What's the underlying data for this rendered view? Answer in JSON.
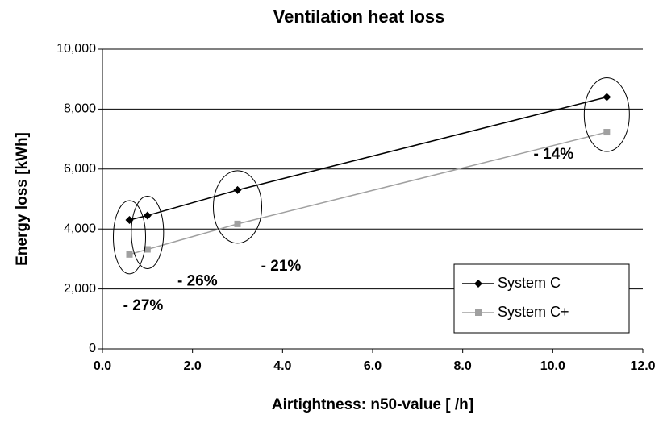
{
  "chart_data": {
    "type": "line",
    "title": "Ventilation heat loss",
    "x_label": "Airtightness: n50-value [ /h]",
    "y_label": "Energy loss [kWh]",
    "x": [
      0.6,
      1.0,
      3.0,
      11.2
    ],
    "series": [
      {
        "name": "System C",
        "color": "#000000",
        "marker": "diamond",
        "values": [
          4300,
          4450,
          5300,
          8400
        ]
      },
      {
        "name": "System C+",
        "color": "#a0a0a0",
        "marker": "square",
        "values": [
          3150,
          3320,
          4170,
          7230
        ]
      }
    ],
    "annotations": [
      "- 27%",
      "- 26%",
      "- 21%",
      "- 14%"
    ],
    "xlim": [
      0,
      12
    ],
    "ylim": [
      0,
      10000
    ],
    "xticks": [
      {
        "value": 0,
        "label": "0.0"
      },
      {
        "value": 2,
        "label": "2.0"
      },
      {
        "value": 4,
        "label": "4.0"
      },
      {
        "value": 6,
        "label": "6.0"
      },
      {
        "value": 8,
        "label": "8.0"
      },
      {
        "value": 10,
        "label": "10.0"
      },
      {
        "value": 12,
        "label": "12.0"
      }
    ],
    "yticks": [
      0,
      {
        "value": 2000,
        "label": "2,000"
      },
      {
        "value": 4000,
        "label": "4,000"
      },
      {
        "value": 6000,
        "label": "6,000"
      },
      {
        "value": 8000,
        "label": "8,000"
      },
      {
        "value": 10000,
        "label": "10,000"
      }
    ],
    "grid": true,
    "legend": "lower right"
  }
}
